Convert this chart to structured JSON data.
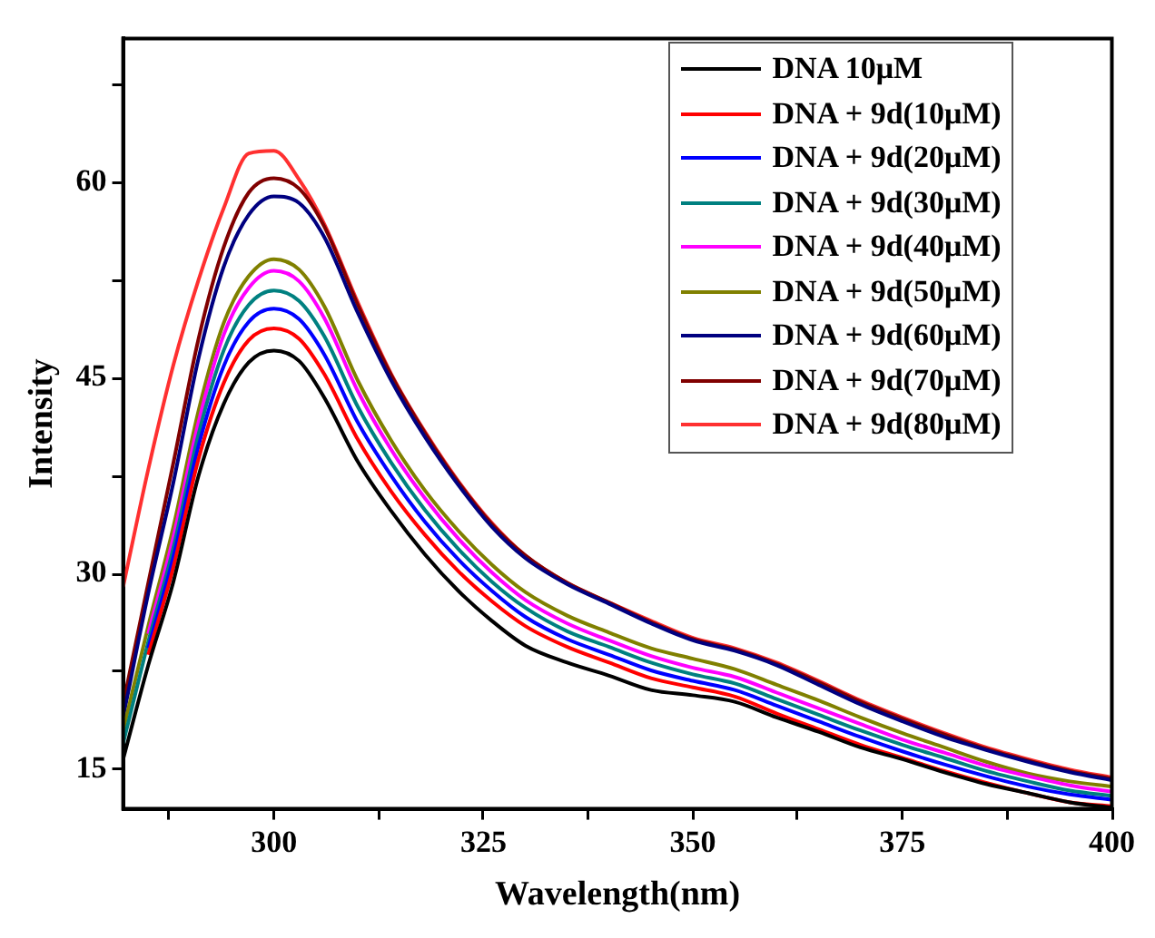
{
  "chart_data": {
    "type": "line",
    "xlabel": "Wavelength(nm)",
    "ylabel": "Intensity",
    "x": [
      282,
      285,
      288,
      291,
      294,
      297,
      300,
      303,
      306,
      310,
      314,
      318,
      322,
      326,
      330,
      335,
      340,
      345,
      350,
      355,
      360,
      365,
      370,
      375,
      380,
      385,
      390,
      395,
      400
    ],
    "series": [
      {
        "name": "DNA 10μM",
        "color": "#000000",
        "values": [
          15.8,
          23,
          29.4,
          37.5,
          43,
          46.2,
          47.1,
          46.3,
          43.5,
          38.6,
          34.8,
          31.5,
          28.7,
          26.4,
          24.5,
          23.2,
          22.2,
          21.1,
          20.7,
          20.2,
          19,
          17.9,
          16.7,
          15.8,
          14.8,
          13.9,
          13.2,
          12.5,
          12.1
        ]
      },
      {
        "name": "DNA + 9d(10μM)",
        "color": "#ff0000",
        "values": [
          null,
          23.8,
          30.5,
          38.8,
          44.6,
          47.9,
          48.8,
          48,
          45.3,
          40.3,
          36.3,
          33,
          30.2,
          27.9,
          26,
          24.4,
          23.2,
          22,
          21.3,
          20.6,
          19.3,
          18.1,
          16.9,
          15.9,
          14.9,
          14,
          13.2,
          12.5,
          12.2
        ]
      },
      {
        "name": "DNA + 9d(20μM)",
        "color": "#0000ff",
        "values": [
          null,
          24.3,
          31.3,
          39.8,
          45.9,
          49.3,
          50.3,
          49.5,
          46.8,
          41.6,
          37.5,
          34,
          31.1,
          28.7,
          26.7,
          25,
          23.8,
          22.6,
          21.8,
          21.1,
          19.9,
          18.7,
          17.5,
          16.4,
          15.4,
          14.5,
          13.7,
          13.1,
          12.7
        ]
      },
      {
        "name": "DNA + 9d(30μM)",
        "color": "#008080",
        "values": [
          17,
          24.8,
          32,
          40.7,
          47.1,
          50.6,
          51.7,
          50.9,
          48.2,
          42.8,
          38.5,
          34.9,
          31.9,
          29.4,
          27.4,
          25.6,
          24.4,
          23.2,
          22.3,
          21.6,
          20.4,
          19.2,
          18,
          16.9,
          15.9,
          14.9,
          14.1,
          13.4,
          13
        ]
      },
      {
        "name": "DNA + 9d(40μM)",
        "color": "#ff00ff",
        "values": [
          null,
          25.4,
          32.8,
          41.6,
          48.3,
          51.9,
          53.2,
          52.4,
          49.6,
          44,
          39.5,
          35.8,
          32.7,
          30.1,
          28,
          26.2,
          24.9,
          23.7,
          22.8,
          22.1,
          20.9,
          19.7,
          18.5,
          17.3,
          16.3,
          15.3,
          14.5,
          13.8,
          13.3
        ]
      },
      {
        "name": "DNA + 9d(50μM)",
        "color": "#808000",
        "values": [
          18,
          26,
          33.6,
          42.5,
          49.2,
          52.8,
          54.1,
          53.3,
          50.5,
          44.8,
          40.2,
          36.4,
          33.3,
          30.7,
          28.6,
          26.8,
          25.5,
          24.3,
          23.5,
          22.7,
          21.5,
          20.3,
          19,
          17.8,
          16.7,
          15.6,
          14.7,
          14.1,
          13.7
        ]
      },
      {
        "name": "DNA + 9d(60μM)",
        "color": "#000080",
        "values": [
          19,
          28.5,
          37,
          46.5,
          53.5,
          57.5,
          58.9,
          58.4,
          55.8,
          50,
          44.8,
          40.5,
          36.8,
          33.6,
          31.2,
          29.2,
          27.7,
          26.2,
          24.9,
          24.1,
          23,
          21.5,
          20,
          18.7,
          17.5,
          16.5,
          15.6,
          14.8,
          14.2
        ]
      },
      {
        "name": "DNA + 9d(70μM)",
        "color": "#800000",
        "values": [
          20,
          29.3,
          38.5,
          48,
          55,
          59.2,
          60.3,
          59.5,
          56.6,
          50.6,
          45.2,
          40.8,
          37,
          33.8,
          31.4,
          29.3,
          27.8,
          26.3,
          25,
          24.2,
          23.1,
          21.7,
          20.2,
          18.9,
          17.7,
          16.6,
          15.7,
          14.9,
          14.3
        ]
      },
      {
        "name": "DNA + 9d(80μM)",
        "color": "#ff3030",
        "values": [
          29,
          38,
          46,
          52.5,
          58,
          62.2,
          62.4,
          60.2,
          56.8,
          50.8,
          45.3,
          40.9,
          37.1,
          33.9,
          31.4,
          29.3,
          27.8,
          26.4,
          25.1,
          24.3,
          23.2,
          21.8,
          20.3,
          19,
          17.8,
          16.7,
          15.8,
          15,
          14.4
        ]
      }
    ],
    "xlim": [
      282,
      400
    ],
    "xticks": [
      {
        "value": 287.5,
        "label": null
      },
      300,
      {
        "value": 312.5,
        "label": null
      },
      325,
      {
        "value": 337.5,
        "label": null
      },
      350,
      {
        "value": 362.5,
        "label": null
      },
      375,
      {
        "value": 387.5,
        "label": null
      },
      400
    ],
    "ylim": [
      12,
      71
    ],
    "yticks": [
      15,
      {
        "value": 22.5,
        "label": null
      },
      30,
      {
        "value": 37.5,
        "label": null
      },
      45,
      {
        "value": 52.5,
        "label": null
      },
      60,
      {
        "value": 67.5,
        "label": null
      }
    ],
    "grid": false,
    "legend": "top right",
    "marker": "none",
    "line_style": "solid"
  }
}
